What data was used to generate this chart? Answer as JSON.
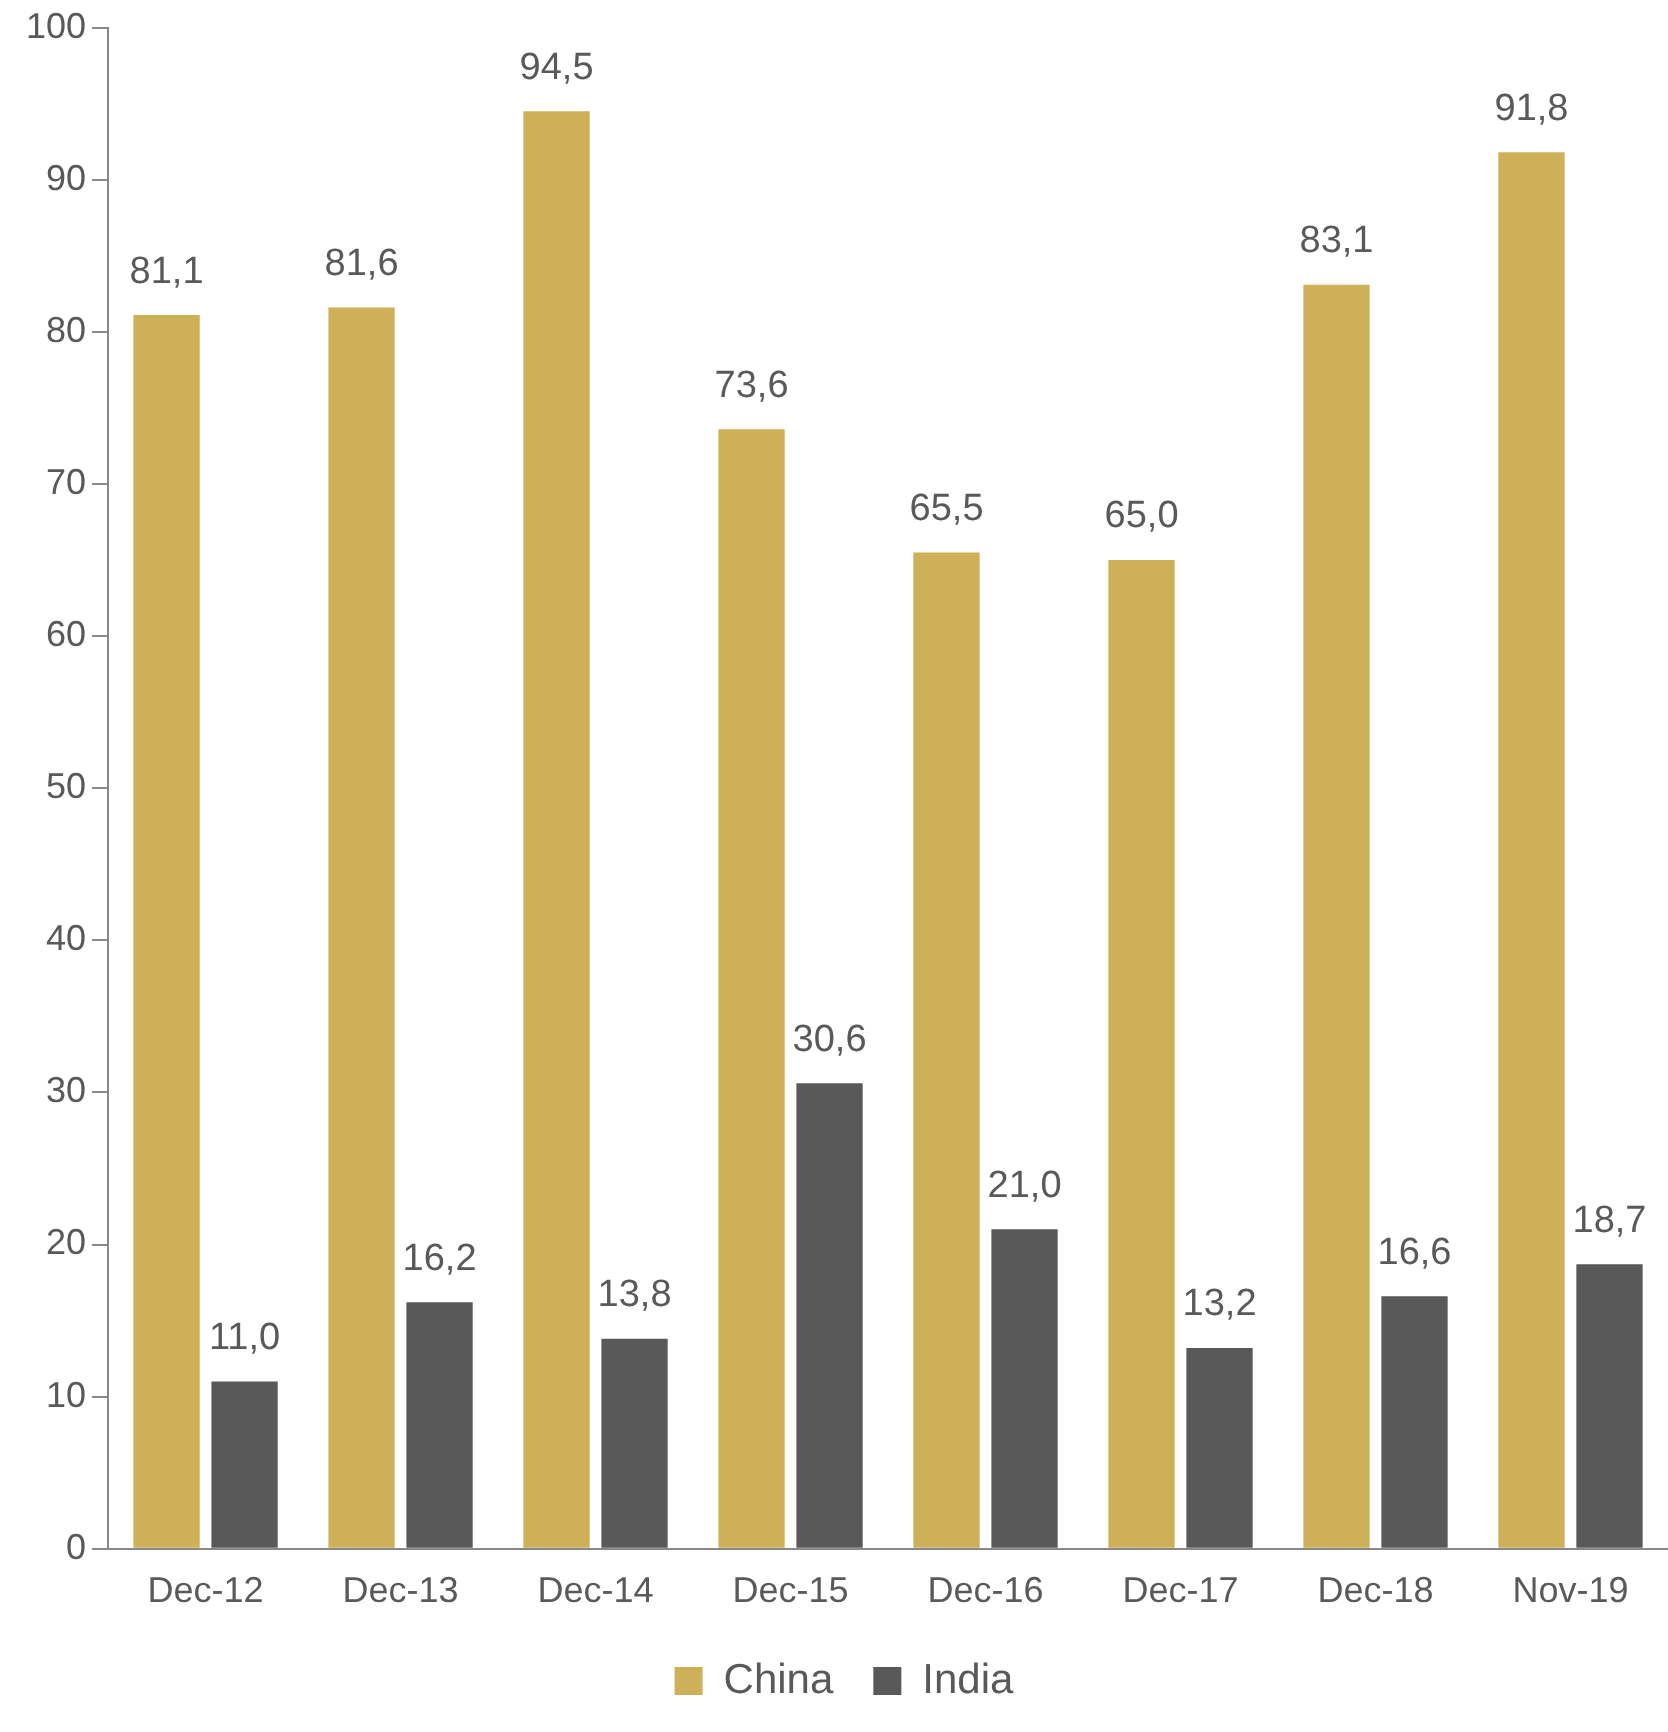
{
  "chart_data": {
    "type": "bar",
    "categories": [
      "Dec-12",
      "Dec-13",
      "Dec-14",
      "Dec-15",
      "Dec-16",
      "Dec-17",
      "Dec-18",
      "Nov-19"
    ],
    "series": [
      {
        "name": "China",
        "color": "#cdb058",
        "values": [
          81.1,
          81.6,
          94.5,
          73.6,
          65.5,
          65.0,
          83.1,
          91.8
        ],
        "value_labels": [
          "81,1",
          "81,6",
          "94,5",
          "73,6",
          "65,5",
          "65,0",
          "83,1",
          "91,8"
        ]
      },
      {
        "name": "India",
        "color": "#595959",
        "values": [
          11.0,
          16.2,
          13.8,
          30.6,
          21.0,
          13.2,
          16.6,
          18.7
        ],
        "value_labels": [
          "11,0",
          "16,2",
          "13,8",
          "30,6",
          "21,0",
          "13,2",
          "16,6",
          "18,7"
        ]
      }
    ],
    "ylim": [
      0,
      100
    ],
    "yticks": [
      0,
      10,
      20,
      30,
      40,
      50,
      60,
      70,
      80,
      90,
      100
    ],
    "grid": false,
    "legend": "bottom"
  }
}
